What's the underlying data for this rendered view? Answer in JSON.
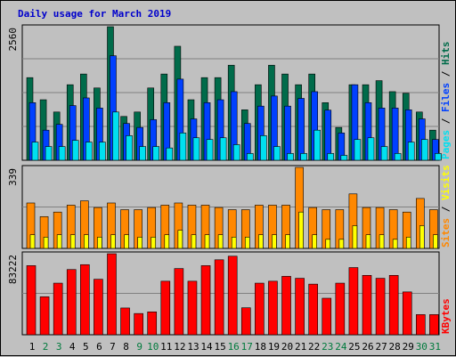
{
  "title": "Daily usage for March 2019",
  "colors": {
    "background": "#c0c0c0",
    "panel": "#c0c0c0",
    "grid": "#808080",
    "hits": "#006b4a",
    "files": "#0040ff",
    "pages": "#00e0f0",
    "visits": "#ff8800",
    "sites": "#ffff00",
    "kbytes": "#ff0000",
    "title": "#0000cc",
    "weekday_label": "#000000",
    "weekend_label": "#007a3d"
  },
  "chart_data": {
    "type": "bar",
    "categories": [
      "1",
      "2",
      "3",
      "4",
      "5",
      "6",
      "7",
      "8",
      "9",
      "10",
      "11",
      "12",
      "13",
      "14",
      "15",
      "16",
      "17",
      "18",
      "19",
      "20",
      "21",
      "22",
      "23",
      "24",
      "25",
      "26",
      "27",
      "28",
      "29",
      "30",
      "31"
    ],
    "weekend_days": [
      "2",
      "3",
      "9",
      "10",
      "16",
      "17",
      "23",
      "24",
      "30",
      "31"
    ],
    "panels": [
      {
        "name": "hits-files-pages",
        "max_label": "2560",
        "ylim": [
          0,
          2560
        ],
        "right_label": [
          {
            "text": "Pages",
            "color": "#00e0f0"
          },
          {
            "text": " / ",
            "color": "#000000"
          },
          {
            "text": "Files",
            "color": "#0040ff"
          },
          {
            "text": " / ",
            "color": "#000000"
          },
          {
            "text": "Hits",
            "color": "#006b4a"
          }
        ],
        "series": [
          {
            "name": "Hits",
            "color": "#006b4a",
            "values": [
              1584,
              1160,
              925,
              1448,
              1653,
              1386,
              2560,
              840,
              925,
              1386,
              1653,
              2185,
              1160,
              1584,
              1584,
              1822,
              967,
              1448,
              1822,
              1653,
              1448,
              1653,
              1104,
              629,
              1448,
              1448,
              1526,
              1315,
              1284,
              925,
              577
            ]
          },
          {
            "name": "Files",
            "color": "#0040ff",
            "values": [
              1104,
              577,
              688,
              1048,
              1195,
              1001,
              2003,
              705,
              629,
              778,
              1104,
              1555,
              793,
              1104,
              1160,
              1315,
              705,
              1038,
              1231,
              1038,
              1186,
              1315,
              961,
              523,
              1448,
              1104,
              1001,
              1001,
              967,
              793,
              398
            ]
          },
          {
            "name": "Pages",
            "color": "#00e0f0",
            "values": [
              348,
              263,
              263,
              381,
              348,
              348,
              925,
              471,
              263,
              263,
              236,
              523,
              431,
              398,
              431,
              299,
              130,
              472,
              263,
              130,
              130,
              577,
              130,
              94,
              398,
              431,
              263,
              130,
              348,
              398,
              130
            ]
          }
        ]
      },
      {
        "name": "visits-sites",
        "max_label": "339",
        "ylim": [
          0,
          339
        ],
        "right_label": [
          {
            "text": "Sites",
            "color": "#ff8800"
          },
          {
            "text": " / ",
            "color": "#000000"
          },
          {
            "text": "Visits",
            "color": "#ffff00"
          }
        ],
        "series": [
          {
            "name": "Visits",
            "color": "#ff8800",
            "values": [
              190,
              133,
              152,
              181,
              199,
              171,
              190,
              162,
              162,
              171,
              181,
              190,
              181,
              181,
              171,
              162,
              162,
              181,
              181,
              181,
              339,
              171,
              162,
              162,
              228,
              171,
              171,
              162,
              152,
              209,
              162
            ]
          },
          {
            "name": "Sites",
            "color": "#ffff00",
            "values": [
              57,
              47,
              57,
              57,
              57,
              47,
              57,
              57,
              47,
              47,
              57,
              76,
              57,
              57,
              57,
              47,
              47,
              57,
              57,
              57,
              152,
              57,
              38,
              38,
              95,
              57,
              57,
              38,
              47,
              95,
              57
            ]
          }
        ]
      },
      {
        "name": "kbytes",
        "max_label": "83222",
        "ylim": [
          0,
          83222
        ],
        "right_label": [
          {
            "text": "KBytes",
            "color": "#ff0000"
          }
        ],
        "series": [
          {
            "name": "KBytes",
            "color": "#ff0000",
            "values": [
              71000,
              39000,
              53000,
              67000,
              72000,
              57000,
              83222,
              27500,
              21800,
              23500,
              55000,
              68000,
              55000,
              71000,
              77000,
              80700,
              27700,
              53000,
              55000,
              60000,
              58000,
              52000,
              37500,
              53000,
              69000,
              61000,
              58000,
              61000,
              44000,
              20700,
              20700
            ]
          }
        ]
      }
    ]
  }
}
